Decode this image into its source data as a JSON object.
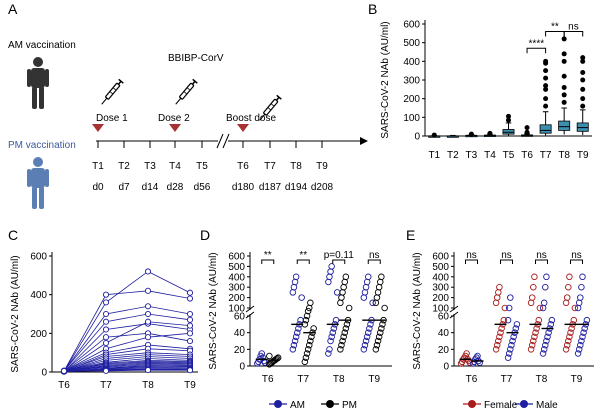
{
  "panel_a": {
    "label": "A",
    "am_label": "AM vaccination",
    "pm_label": "PM vaccination",
    "vaccine": "BBIBP-CorV",
    "dose1": "Dose 1",
    "dose2": "Dose 2",
    "boost": "Boost dose",
    "timepoints": [
      "T1",
      "T2",
      "T3",
      "T4",
      "T5",
      "T6",
      "T7",
      "T8",
      "T9"
    ],
    "days": [
      "d0",
      "d7",
      "d14",
      "d28",
      "d56",
      "d180",
      "d187",
      "d194",
      "d208"
    ],
    "colors": {
      "am_person": "#333333",
      "pm_person": "#5b7fb5",
      "pm_text": "#3c5a9a",
      "dose_marker": "#a83232"
    }
  },
  "chart_data": [
    {
      "panel": "B",
      "type": "box",
      "ylabel": "SARS-CoV-2 NAb (AU/ml)",
      "categories": [
        "T1",
        "T2",
        "T3",
        "T4",
        "T5",
        "T6",
        "T7",
        "T8",
        "T9"
      ],
      "yticks": [
        0,
        100,
        200,
        300,
        400,
        500,
        600
      ],
      "ylim": [
        0,
        600
      ],
      "boxes": [
        {
          "cat": "T1",
          "q1": 0,
          "median": 0,
          "q3": 1,
          "wlo": 0,
          "whi": 2,
          "outliers": [
            5
          ]
        },
        {
          "cat": "T2",
          "q1": 0,
          "median": 0,
          "q3": 1,
          "wlo": 0,
          "whi": 3,
          "outliers": []
        },
        {
          "cat": "T3",
          "q1": 1,
          "median": 2,
          "q3": 4,
          "wlo": 0,
          "whi": 8,
          "outliers": [
            10
          ]
        },
        {
          "cat": "T4",
          "q1": 1,
          "median": 3,
          "q3": 5,
          "wlo": 0,
          "whi": 10,
          "outliers": [
            14
          ]
        },
        {
          "cat": "T5",
          "q1": 10,
          "median": 20,
          "q3": 35,
          "wlo": 2,
          "whi": 70,
          "outliers": [
            85,
            105
          ]
        },
        {
          "cat": "T6",
          "q1": 1,
          "median": 3,
          "q3": 6,
          "wlo": 0,
          "whi": 12,
          "outliers": [
            15,
            20,
            45
          ]
        },
        {
          "cat": "T7",
          "q1": 15,
          "median": 30,
          "q3": 60,
          "wlo": 3,
          "whi": 130,
          "outliers": [
            160,
            200,
            250,
            270,
            310,
            350,
            390,
            400
          ]
        },
        {
          "cat": "T8",
          "q1": 30,
          "median": 50,
          "q3": 80,
          "wlo": 8,
          "whi": 150,
          "outliers": [
            180,
            220,
            260,
            320,
            400,
            440,
            520
          ]
        },
        {
          "cat": "T9",
          "q1": 25,
          "median": 45,
          "q3": 70,
          "wlo": 5,
          "whi": 140,
          "outliers": [
            160,
            200,
            250,
            300,
            340,
            400,
            420
          ]
        }
      ],
      "significance": [
        {
          "from": "T6",
          "to": "T7",
          "label": "****",
          "y": 470
        },
        {
          "from": "T7",
          "to": "T8",
          "label": "**",
          "y": 560
        },
        {
          "from": "T8",
          "to": "T9",
          "label": "ns",
          "y": 560
        }
      ],
      "color": "#3d8fb0"
    },
    {
      "panel": "C",
      "type": "line",
      "ylabel": "SARS-CoV-2 NAb (AU/ml)",
      "categories": [
        "T6",
        "T7",
        "T8",
        "T9"
      ],
      "yticks": [
        0,
        200,
        400,
        600
      ],
      "ylim": [
        0,
        600
      ],
      "color": "#1f1fa0",
      "series": [
        [
          5,
          400,
          420,
          380
        ],
        [
          3,
          360,
          520,
          410
        ],
        [
          4,
          300,
          340,
          300
        ],
        [
          6,
          260,
          300,
          270
        ],
        [
          2,
          220,
          250,
          220
        ],
        [
          5,
          180,
          200,
          160
        ],
        [
          3,
          150,
          260,
          240
        ],
        [
          4,
          120,
          180,
          200
        ],
        [
          6,
          100,
          140,
          120
        ],
        [
          2,
          90,
          120,
          110
        ],
        [
          5,
          80,
          100,
          90
        ],
        [
          3,
          70,
          90,
          80
        ],
        [
          4,
          60,
          80,
          70
        ],
        [
          6,
          50,
          70,
          60
        ],
        [
          2,
          45,
          60,
          55
        ],
        [
          5,
          40,
          55,
          50
        ],
        [
          3,
          35,
          50,
          45
        ],
        [
          4,
          30,
          45,
          40
        ],
        [
          6,
          25,
          40,
          35
        ],
        [
          2,
          20,
          35,
          30
        ],
        [
          5,
          18,
          30,
          28
        ],
        [
          3,
          15,
          25,
          22
        ],
        [
          4,
          12,
          20,
          18
        ],
        [
          6,
          10,
          15,
          14
        ],
        [
          2,
          8,
          12,
          10
        ],
        [
          5,
          6,
          10,
          9
        ]
      ]
    },
    {
      "panel": "D",
      "type": "scatter",
      "ylabel": "SARS-CoV-2 NAb (AU/ml)",
      "categories": [
        "T6",
        "T7",
        "T8",
        "T9"
      ],
      "yticks_upper": [
        100,
        200,
        300,
        400,
        500,
        600
      ],
      "yticks_lower": [
        0,
        20,
        40,
        60
      ],
      "legend": [
        "AM",
        "PM"
      ],
      "colors": {
        "AM": "#1f1fa0",
        "PM": "#000000"
      },
      "groups": [
        {
          "cat": "T6",
          "AM": [
            3,
            5,
            8,
            12,
            15,
            10,
            6,
            4
          ],
          "PM": [
            2,
            3,
            4,
            5,
            6,
            7,
            8,
            9,
            10,
            12
          ]
        },
        {
          "cat": "T7",
          "AM": [
            20,
            25,
            30,
            35,
            40,
            45,
            50,
            55,
            200,
            250,
            300,
            350,
            400
          ],
          "PM": [
            5,
            10,
            15,
            20,
            25,
            30,
            35,
            40,
            45,
            50,
            55,
            60,
            70,
            100,
            150
          ]
        },
        {
          "cat": "T8",
          "AM": [
            15,
            20,
            30,
            35,
            40,
            45,
            50,
            55,
            250,
            350,
            400,
            450,
            500
          ],
          "PM": [
            20,
            25,
            30,
            35,
            40,
            45,
            50,
            55,
            100,
            150,
            200,
            250,
            300,
            350,
            400
          ]
        },
        {
          "cat": "T9",
          "AM": [
            20,
            25,
            30,
            35,
            40,
            45,
            50,
            55,
            150,
            200,
            250,
            300,
            350,
            400
          ],
          "PM": [
            20,
            25,
            30,
            35,
            40,
            45,
            50,
            55,
            100,
            150,
            200,
            250,
            300,
            350,
            400
          ]
        }
      ],
      "significance": [
        {
          "cat": "T6",
          "label": "**"
        },
        {
          "cat": "T7",
          "label": "**"
        },
        {
          "cat": "T8",
          "label": "p=0.11"
        },
        {
          "cat": "T9",
          "label": "ns"
        }
      ]
    },
    {
      "panel": "E",
      "type": "scatter",
      "ylabel": "SARS-CoV-2 NAb (AU/ml)",
      "categories": [
        "T6",
        "T7",
        "T8",
        "T9"
      ],
      "yticks_upper": [
        100,
        200,
        300,
        400,
        500,
        600
      ],
      "yticks_lower": [
        0,
        20,
        40,
        60
      ],
      "legend": [
        "Female",
        "Male"
      ],
      "colors": {
        "Female": "#a81c1c",
        "Male": "#1f1fa0"
      },
      "groups": [
        {
          "cat": "T6",
          "Female": [
            3,
            5,
            8,
            10,
            12,
            15,
            8,
            6,
            4
          ],
          "Male": [
            3,
            5,
            8,
            10,
            12,
            6,
            4
          ]
        },
        {
          "cat": "T7",
          "Female": [
            20,
            25,
            30,
            35,
            40,
            45,
            50,
            55,
            100,
            150,
            200,
            250,
            300
          ],
          "Male": [
            10,
            15,
            20,
            25,
            30,
            35,
            40,
            45,
            50,
            55,
            100,
            200
          ]
        },
        {
          "cat": "T8",
          "Female": [
            20,
            25,
            30,
            35,
            40,
            45,
            50,
            55,
            100,
            150,
            200,
            300,
            400
          ],
          "Male": [
            15,
            20,
            25,
            30,
            35,
            40,
            45,
            50,
            55,
            100,
            150,
            300,
            400
          ]
        },
        {
          "cat": "T9",
          "Female": [
            20,
            25,
            30,
            35,
            40,
            45,
            50,
            55,
            100,
            150,
            200,
            300,
            400
          ],
          "Male": [
            15,
            20,
            25,
            30,
            35,
            40,
            45,
            50,
            55,
            100,
            150,
            200,
            300,
            400
          ]
        }
      ],
      "significance": [
        {
          "cat": "T6",
          "label": "ns"
        },
        {
          "cat": "T7",
          "label": "ns"
        },
        {
          "cat": "T8",
          "label": "ns"
        },
        {
          "cat": "T9",
          "label": "ns"
        }
      ]
    }
  ]
}
